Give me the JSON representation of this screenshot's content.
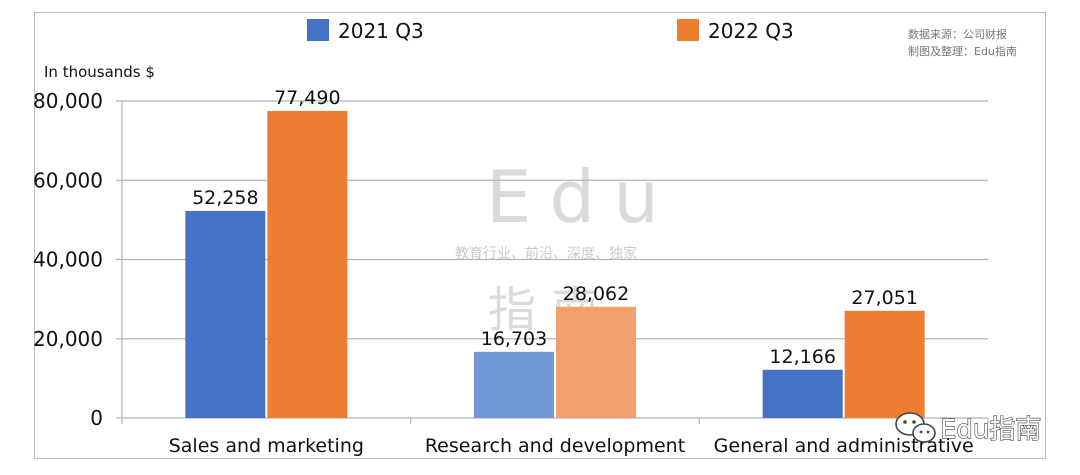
{
  "source_note": {
    "line1": "数据来源：公司财报",
    "line2": "制图及整理：Edu指南"
  },
  "unit_label": "In thousands $",
  "watermark": {
    "big": "Edu",
    "small": "教育行业、前沿、深度、独家",
    "chinese": "指 南"
  },
  "brand": {
    "text": "Edu指南",
    "icon": "wechat-icon"
  },
  "colors": {
    "series_2021": "#4472c4",
    "series_2022": "#ed7d31",
    "grid": "#b5b5b5"
  },
  "chart_data": {
    "type": "bar",
    "title": "",
    "xlabel": "",
    "ylabel": "In thousands $",
    "categories": [
      "Sales and marketing",
      "Research and development",
      "General and administrative"
    ],
    "series": [
      {
        "name": "2021 Q3",
        "values": [
          52258,
          16703,
          12166
        ],
        "labels": [
          "52,258",
          "16,703",
          "12,166"
        ]
      },
      {
        "name": "2022 Q3",
        "values": [
          77490,
          28062,
          27051
        ],
        "labels": [
          "77,490",
          "28,062",
          "27,051"
        ]
      }
    ],
    "ylim": [
      0,
      80000
    ],
    "yticks": [
      0,
      20000,
      40000,
      60000,
      80000
    ],
    "ytick_labels": [
      "0",
      "20,000",
      "40,000",
      "60,000",
      "80,000"
    ],
    "grid": true,
    "legend_position": "top"
  }
}
